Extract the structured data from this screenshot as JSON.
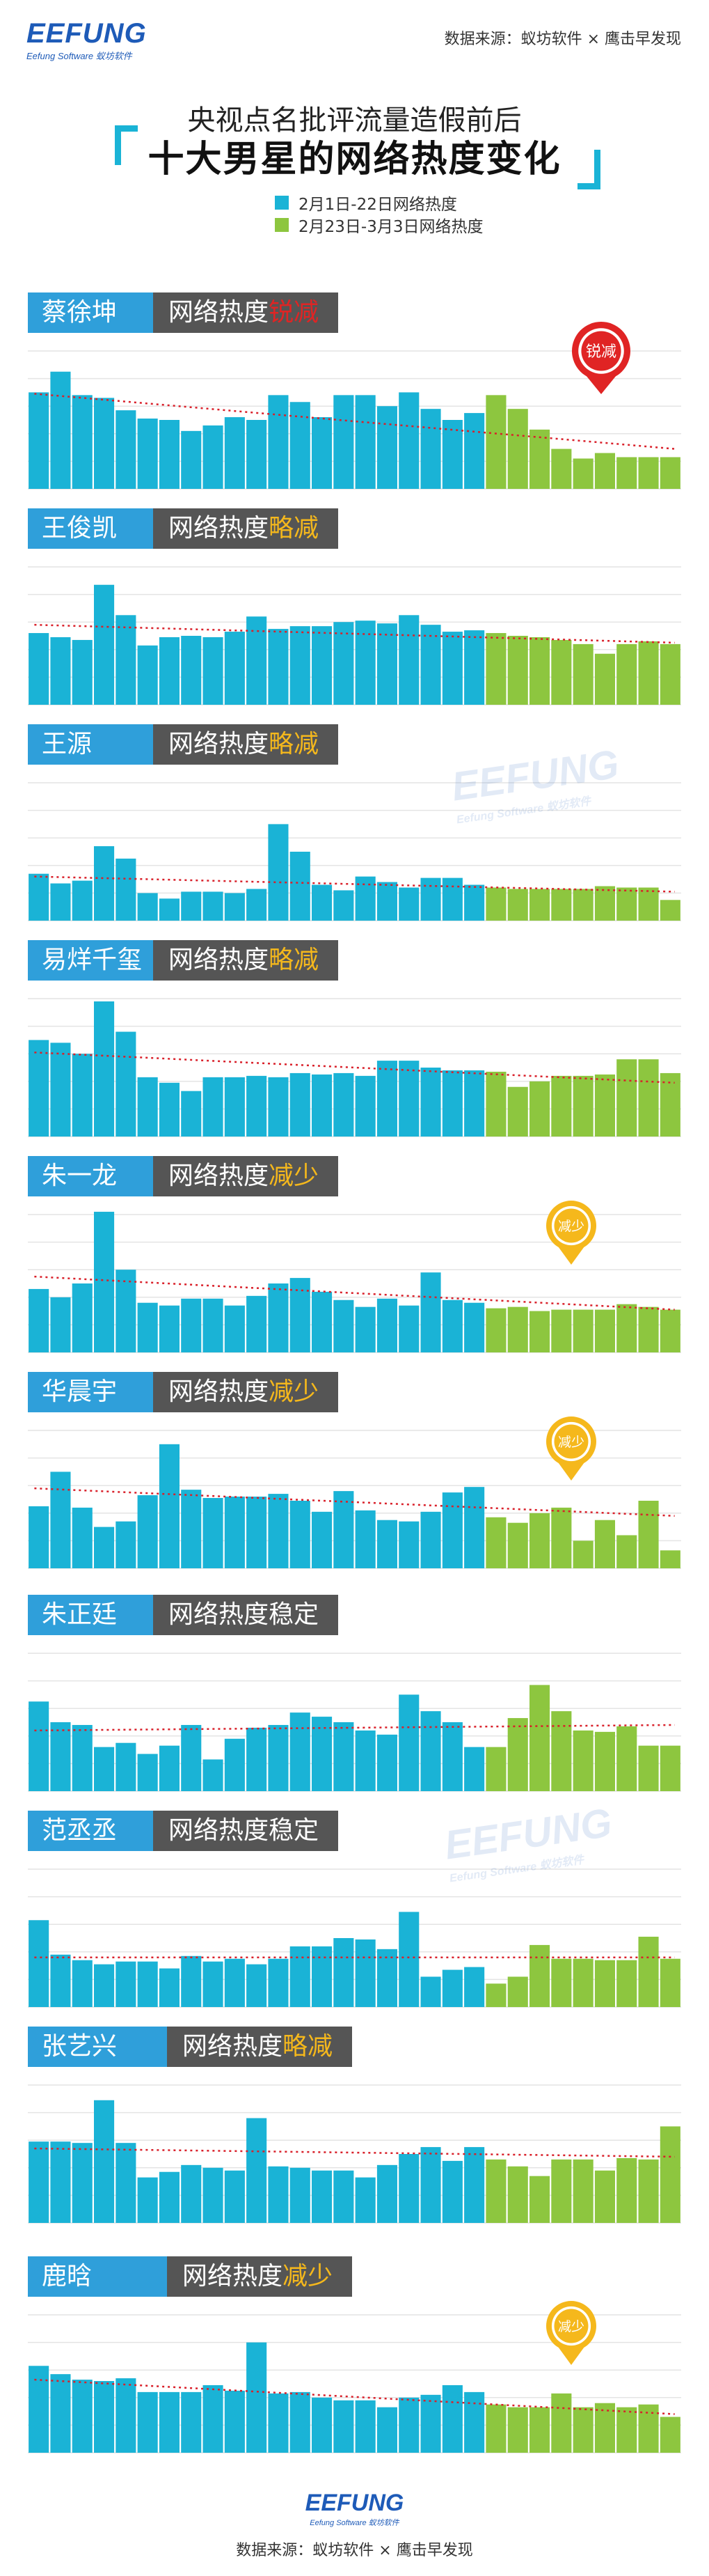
{
  "header": {
    "logo": "EEFUNG",
    "logo_sub": "Eefung Software 蚁坊软件",
    "source": "数据来源：蚁坊软件 × 鹰击早发现",
    "subtitle": "央视点名批评流量造假前后",
    "title": "十大男星的网络热度变化"
  },
  "legend": [
    {
      "label": "2月1日-22日网络热度",
      "color": "#1ab3d6"
    },
    {
      "label": "2月23日-3月3日网络热度",
      "color": "#8dc63f"
    }
  ],
  "colors": {
    "before": "#1ab3d6",
    "after": "#8dc63f",
    "trend": "#d9202a",
    "sharp": "#e02424",
    "mild": "#f5b81c",
    "name_bg": "#2f9fda",
    "status_bg": "#555555",
    "grid": "#e4e4e4"
  },
  "watermark": {
    "logo": "EEFUNG",
    "sub": "Eefung Software 蚁坊软件"
  },
  "chart_data": [
    {
      "type": "bar",
      "name": "蔡徐坤",
      "label_prefix": "网络热度",
      "label_status": "锐减",
      "status_color": "#e02424",
      "badge": "锐减",
      "badge_style": "red",
      "before": [
        7.0,
        8.5,
        6.8,
        6.6,
        5.7,
        5.1,
        5.0,
        4.2,
        4.6,
        5.2,
        5.0,
        6.8,
        6.3,
        5.2,
        6.8,
        6.8,
        6.0,
        7.0,
        5.8,
        5.0,
        5.5
      ],
      "after": [
        6.8,
        5.8,
        4.3,
        2.9,
        2.2,
        2.6,
        2.3,
        2.3,
        2.3
      ],
      "trend": [
        6.9,
        2.9
      ],
      "ymax": 10
    },
    {
      "type": "bar",
      "name": "王俊凯",
      "label_prefix": "网络热度",
      "label_status": "略减",
      "status_color": "#f5b81c",
      "badge": "",
      "badge_style": "",
      "before": [
        5.2,
        4.9,
        4.7,
        8.7,
        6.5,
        4.3,
        4.9,
        5.0,
        4.9,
        5.3,
        6.4,
        5.5,
        5.7,
        5.7,
        6.0,
        6.1,
        5.9,
        6.5,
        5.8,
        5.3,
        5.4
      ],
      "after": [
        5.2,
        5.0,
        4.9,
        4.7,
        4.4,
        3.7,
        4.4,
        4.6,
        4.4
      ],
      "trend": [
        5.8,
        4.5
      ],
      "ymax": 10
    },
    {
      "type": "bar",
      "name": "王源",
      "label_prefix": "网络热度",
      "label_status": "略减",
      "status_color": "#f5b81c",
      "badge": "",
      "badge_style": "",
      "before": [
        3.4,
        2.7,
        2.9,
        5.4,
        4.5,
        2.0,
        1.6,
        2.1,
        2.1,
        2.0,
        2.3,
        7.0,
        5.0,
        2.6,
        2.2,
        3.2,
        2.8,
        2.4,
        3.1,
        3.1,
        2.6
      ],
      "after": [
        2.4,
        2.3,
        2.3,
        2.3,
        2.3,
        2.5,
        2.4,
        2.4,
        1.5
      ],
      "trend": [
        3.2,
        2.1
      ],
      "ymax": 10
    },
    {
      "type": "bar",
      "name": "易烊千玺",
      "label_prefix": "网络热度",
      "label_status": "略减",
      "status_color": "#f5b81c",
      "badge": "",
      "badge_style": "",
      "before": [
        7.0,
        6.8,
        6.0,
        9.8,
        7.6,
        4.3,
        3.9,
        3.3,
        4.3,
        4.3,
        4.4,
        4.3,
        4.6,
        4.5,
        4.6,
        4.4,
        5.5,
        5.5,
        5.0,
        4.8,
        4.8
      ],
      "after": [
        4.7,
        3.6,
        4.0,
        4.4,
        4.4,
        4.5,
        5.6,
        5.6,
        4.6
      ],
      "trend": [
        6.1,
        3.9
      ],
      "ymax": 10
    },
    {
      "type": "bar",
      "name": "朱一龙",
      "label_prefix": "网络热度",
      "label_status": "减少",
      "status_color": "#f5b81c",
      "badge": "减少",
      "badge_style": "yellow",
      "before": [
        4.6,
        4.0,
        5.0,
        10.2,
        6.0,
        3.6,
        3.4,
        3.9,
        3.9,
        3.4,
        4.1,
        5.0,
        5.4,
        4.4,
        3.8,
        3.3,
        3.9,
        3.4,
        5.8,
        3.8,
        3.6
      ],
      "after": [
        3.2,
        3.3,
        3.0,
        3.1,
        3.1,
        3.1,
        3.5,
        3.3,
        3.1
      ],
      "trend": [
        5.5,
        3.1
      ],
      "ymax": 10
    },
    {
      "type": "bar",
      "name": "华晨宇",
      "label_prefix": "网络热度",
      "label_status": "减少",
      "status_color": "#f5b81c",
      "badge": "减少",
      "badge_style": "yellow",
      "before": [
        4.5,
        7.0,
        4.4,
        3.0,
        3.4,
        5.3,
        9.0,
        5.7,
        5.1,
        5.2,
        5.2,
        5.4,
        4.9,
        4.1,
        5.6,
        4.2,
        3.5,
        3.4,
        4.1,
        5.5,
        5.9
      ],
      "after": [
        3.7,
        3.3,
        4.0,
        4.4,
        2.0,
        3.5,
        2.4,
        4.9,
        1.3
      ],
      "trend": [
        5.8,
        3.8
      ],
      "ymax": 10
    },
    {
      "type": "bar",
      "name": "朱正廷",
      "label_prefix": "网络热度",
      "label_status": "稳定",
      "status_color": "#ffffff",
      "badge": "",
      "badge_style": "",
      "before": [
        6.5,
        5.0,
        4.8,
        3.2,
        3.5,
        2.7,
        3.3,
        4.8,
        2.3,
        3.8,
        4.6,
        4.8,
        5.7,
        5.4,
        5.0,
        4.4,
        4.1,
        7.0,
        5.8,
        5.0,
        3.2
      ],
      "after": [
        3.2,
        5.3,
        7.7,
        5.8,
        4.4,
        4.3,
        4.7,
        3.3,
        3.3
      ],
      "trend": [
        4.4,
        4.8
      ],
      "ymax": 10
    },
    {
      "type": "bar",
      "name": "范丞丞",
      "label_prefix": "网络热度",
      "label_status": "稳定",
      "status_color": "#ffffff",
      "badge": "",
      "badge_style": "",
      "before": [
        6.3,
        3.8,
        3.4,
        3.1,
        3.3,
        3.3,
        2.8,
        3.7,
        3.3,
        3.5,
        3.1,
        3.5,
        4.4,
        4.4,
        5.0,
        4.9,
        4.2,
        6.9,
        2.2,
        2.7,
        2.9
      ],
      "after": [
        1.7,
        2.2,
        4.5,
        3.5,
        3.5,
        3.4,
        3.4,
        5.1,
        3.5
      ],
      "trend": [
        3.6,
        3.6
      ],
      "ymax": 10
    },
    {
      "type": "bar",
      "name": "张艺兴",
      "label_prefix": "网络热度",
      "label_status": "略减",
      "status_color": "#f5b81c",
      "badge": "",
      "badge_style": "",
      "before": [
        5.9,
        5.9,
        5.8,
        8.9,
        5.8,
        3.3,
        3.7,
        4.2,
        4.0,
        3.8,
        7.6,
        4.1,
        4.0,
        3.8,
        3.8,
        3.3,
        4.2,
        5.0,
        5.5,
        4.5,
        5.5
      ],
      "after": [
        4.6,
        4.1,
        3.4,
        4.6,
        4.6,
        3.8,
        4.7,
        4.6,
        7.0
      ],
      "trend": [
        5.4,
        4.8
      ],
      "ymax": 10
    },
    {
      "type": "bar",
      "name": "鹿晗",
      "label_prefix": "网络热度",
      "label_status": "减少",
      "status_color": "#f5b81c",
      "badge": "减少",
      "badge_style": "yellow",
      "before": [
        6.3,
        5.7,
        5.3,
        5.2,
        5.4,
        4.4,
        4.4,
        4.4,
        4.9,
        4.5,
        8.0,
        4.3,
        4.4,
        4.0,
        3.8,
        3.8,
        3.3,
        4.0,
        4.2,
        4.9,
        4.4
      ],
      "after": [
        3.5,
        3.3,
        3.3,
        4.3,
        3.3,
        3.6,
        3.3,
        3.5,
        2.6
      ],
      "trend": [
        5.3,
        2.8
      ],
      "ymax": 10
    }
  ],
  "footer": {
    "logo": "EEFUNG",
    "logo_sub": "Eefung Software 蚁坊软件",
    "source": "数据来源：蚁坊软件 × 鹰击早发现"
  }
}
